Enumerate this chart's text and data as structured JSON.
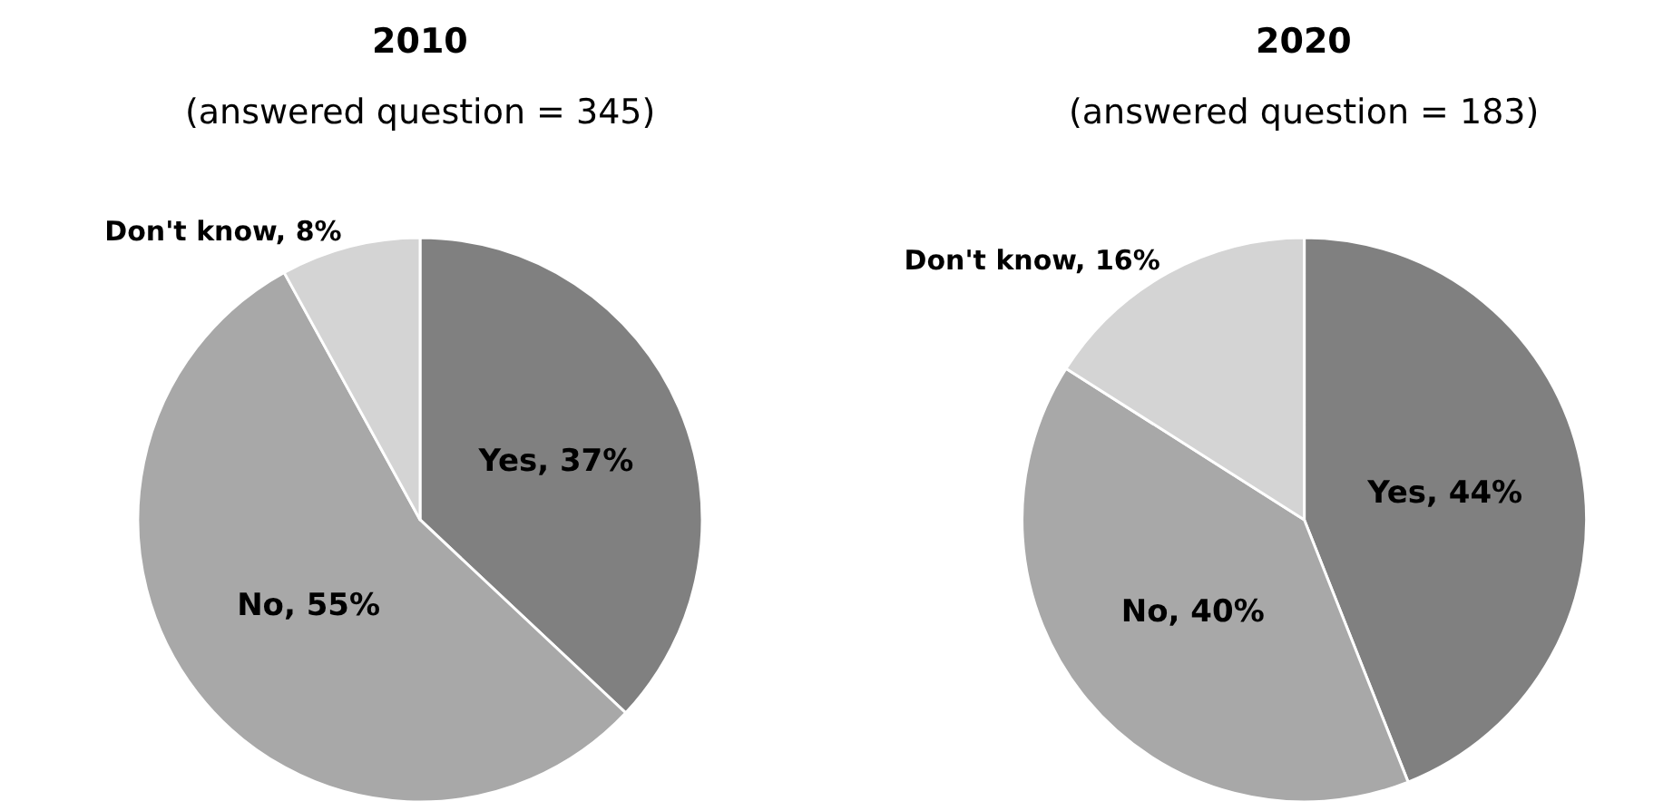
{
  "chart_data": [
    {
      "type": "pie",
      "title": "2010",
      "subtitle": "(answered question = 345)",
      "categories": [
        "Yes, 37%",
        "No, 55%",
        "Don't know, 8%"
      ],
      "values": [
        37,
        55,
        8
      ],
      "colors": [
        "#808080",
        "#a8a8a8",
        "#d4d4d4"
      ]
    },
    {
      "type": "pie",
      "title": "2020",
      "subtitle": "(answered question = 183)",
      "categories": [
        "Yes, 44%",
        "No, 40%",
        "Don't know, 16%"
      ],
      "values": [
        44,
        40,
        16
      ],
      "colors": [
        "#808080",
        "#a8a8a8",
        "#d4d4d4"
      ]
    }
  ]
}
